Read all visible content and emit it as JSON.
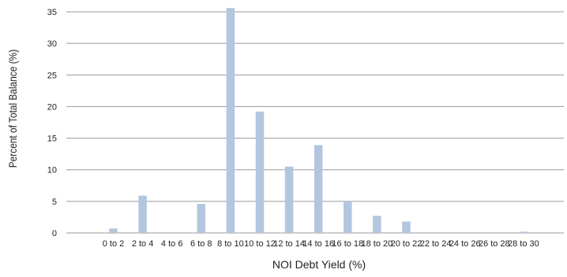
{
  "chart_data": {
    "type": "bar",
    "title": "",
    "xlabel": "NOI Debt Yield (%)",
    "ylabel": "Percent of Total Balance (%)",
    "ylim": [
      0,
      35
    ],
    "yticks": [
      0,
      5,
      10,
      15,
      20,
      25,
      30,
      35
    ],
    "grid": true,
    "categories": [
      "0 to 2",
      "2 to 4",
      "4 to 6",
      "6 to 8",
      "8 to 10",
      "10 to 12",
      "12 to 14",
      "14 to 16",
      "16 to 18",
      "18 to 20",
      "20 to 22",
      "22 to 24",
      "24 to 26",
      "26 to 28",
      "28 to 30"
    ],
    "x_tick_labels": [
      "0 to 2",
      "2 to 4",
      "4 to 6",
      "6 to 8",
      "8 to 10",
      "10 to 12",
      "12 to 14",
      "14 to 16",
      "16 to 18",
      "18 to 20",
      "20 to 22",
      "22 to 24",
      "24 to 26",
      "26 to 28",
      "28 to 30"
    ],
    "values": [
      0.7,
      5.9,
      0,
      4.6,
      35.6,
      19.2,
      10.5,
      13.9,
      5.0,
      2.7,
      1.8,
      0,
      0,
      0,
      0.2
    ],
    "bar_color": "#b3c6df",
    "grid_color": "#9a9a9a"
  }
}
